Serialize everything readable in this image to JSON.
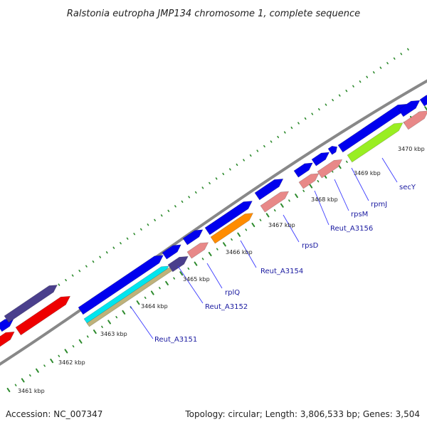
{
  "title": "Ralstonia eutropha JMP134 chromosome 1, complete sequence",
  "footer": {
    "accession": "Accession: NC_007347",
    "summary": "Topology: circular; Length: 3,806,533 bp; Genes: 3,504"
  },
  "scale_labels": [
    "3461 kbp",
    "3462 kbp",
    "3463 kbp",
    "3464 kbp",
    "3465 kbp",
    "3466 kbp",
    "3467 kbp",
    "3468 kbp",
    "3469 kbp",
    "3470 kbp"
  ],
  "gene_labels": [
    "Reut_A3151",
    "Reut_A3152",
    "rplQ",
    "Reut_A3154",
    "rpsD",
    "Reut_A3156",
    "rpsM",
    "rpmJ",
    "secY"
  ],
  "colors": {
    "backbone": "#888888",
    "blue": "#0000ee",
    "purple": "#4a3f8c",
    "red": "#ee0000",
    "pink": "#e88888",
    "orange": "#ff8c00",
    "cyan": "#00e5ee",
    "tan": "#bfb27a",
    "lime": "#99ee22",
    "tick": "#2e8b2e",
    "label": "#1a1aa0"
  }
}
